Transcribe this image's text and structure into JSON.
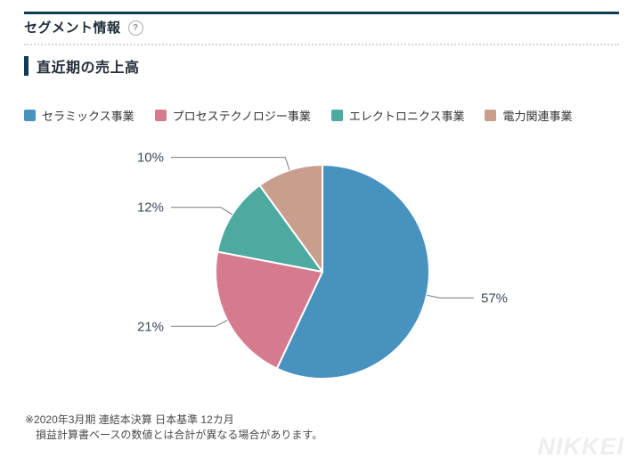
{
  "header": {
    "title": "セグメント情報",
    "help_glyph": "?"
  },
  "section": {
    "title": "直近期の売上高"
  },
  "chart_data": {
    "type": "pie",
    "title": "直近期の売上高",
    "categories": [
      "セラミックス事業",
      "プロセステクノロジー事業",
      "エレクトロニクス事業",
      "電力関連事業"
    ],
    "values": [
      57,
      21,
      12,
      10
    ],
    "unit": "%",
    "labels": [
      "57%",
      "21%",
      "12%",
      "10%"
    ],
    "colors": [
      "#4892c0",
      "#d67b8e",
      "#4caaa0",
      "#c89e8c"
    ],
    "start_angle_deg": 0,
    "direction": "clockwise",
    "legend_position": "top",
    "callout_line_color": "#7a7a7a",
    "label_text_color": "#3c4859"
  },
  "footnote": {
    "line1": "※2020年3月期 連結本決算 日本基準 12カ月",
    "line2": "損益計算書ベースの数値とは合計が異なる場合があります。"
  },
  "watermark": "NIKKEI",
  "colors": {
    "accent_navy": "#0f3a58",
    "divider_dotted": "#d6d6d6"
  }
}
